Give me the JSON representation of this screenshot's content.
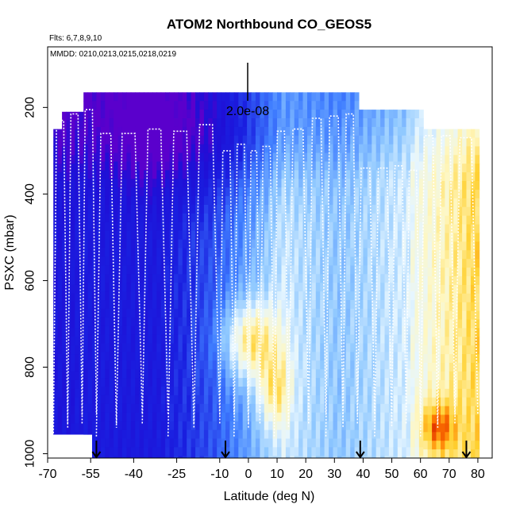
{
  "chart_data": {
    "type": "heatmap",
    "title": "ATOM2 Northbound CO_GEOS5",
    "subtitle_flights": "Flts: 6,7,8,9,10",
    "subtitle_dates": "MMDD: 0210,0213,0215,0218,0219",
    "xlabel": "Latitude (deg N)",
    "ylabel": "PSXC (mbar)",
    "xlim": [
      -70,
      85
    ],
    "ylim": [
      1010,
      60
    ],
    "x_ticks": [
      -70,
      -55,
      -40,
      -25,
      -10,
      0,
      10,
      20,
      30,
      40,
      50,
      60,
      70,
      80
    ],
    "y_ticks": [
      200,
      400,
      600,
      800,
      1000
    ],
    "scale_label": "2.0e-08",
    "colormap": {
      "stops": [
        [
          0.0,
          "#5a00cc"
        ],
        [
          0.07,
          "#1f0fd6"
        ],
        [
          0.2,
          "#1a1fe0"
        ],
        [
          0.38,
          "#3f7dff"
        ],
        [
          0.52,
          "#8fc8ff"
        ],
        [
          0.64,
          "#e6f6ff"
        ],
        [
          0.74,
          "#fff7c0"
        ],
        [
          0.84,
          "#ffd030"
        ],
        [
          0.92,
          "#ff7800"
        ],
        [
          1.0,
          "#cc0000"
        ]
      ]
    },
    "boundary_arrows_lat": [
      -53,
      -8,
      39,
      76
    ],
    "track_color": "#ffffff",
    "plot_border_color": "#000000"
  }
}
